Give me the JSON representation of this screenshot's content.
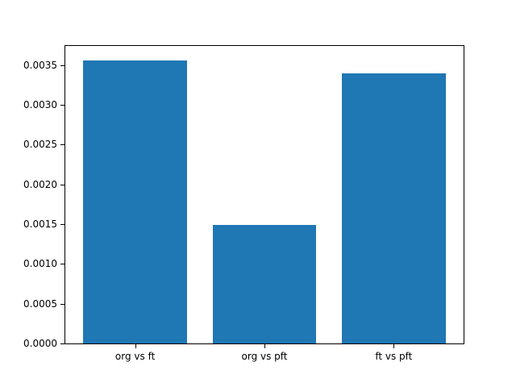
{
  "chart_data": {
    "type": "bar",
    "categories": [
      "org vs ft",
      "org vs pft",
      "ft vs pft"
    ],
    "values": [
      0.00356,
      0.00149,
      0.0034
    ],
    "title": "",
    "xlabel": "",
    "ylabel": "",
    "ylim": [
      0,
      0.00374
    ],
    "xlim": [
      -0.54,
      2.54
    ],
    "bar_width": 0.8,
    "bar_color": "#1f77b4",
    "axis_color": "#000000",
    "background_color": "#ffffff",
    "ytick_labels": [
      "0.0000",
      "0.0005",
      "0.0010",
      "0.0015",
      "0.0020",
      "0.0025",
      "0.0030",
      "0.0035"
    ],
    "grid": false,
    "legend": null
  }
}
